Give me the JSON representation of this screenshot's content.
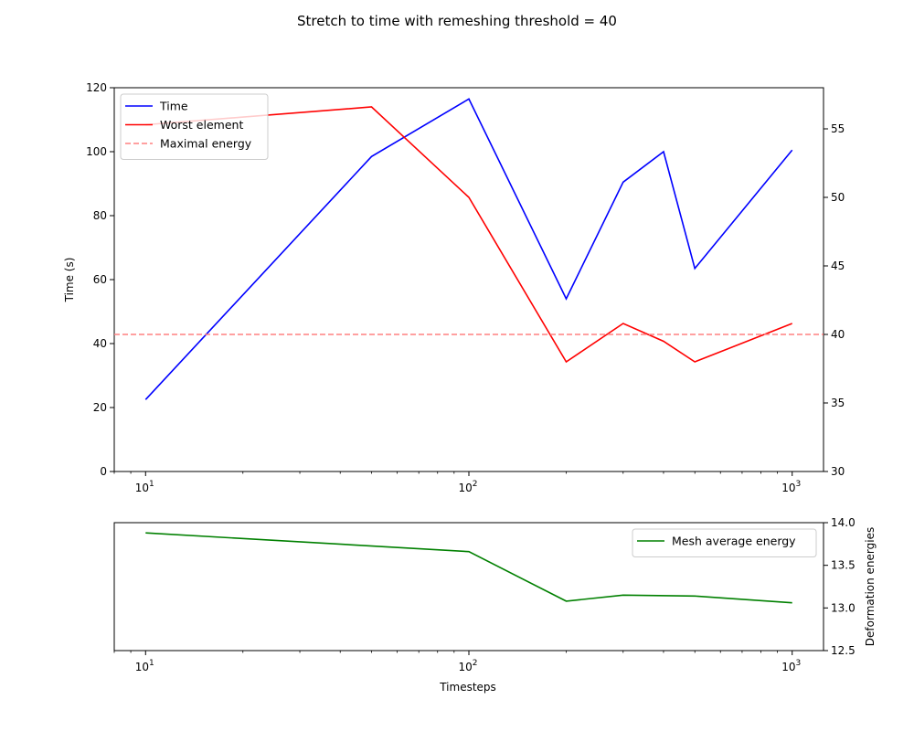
{
  "title": "Stretch to time with remeshing threshold = 40",
  "chart_data": [
    {
      "type": "line",
      "title": "Stretch to time with remeshing threshold = 40",
      "xscale": "log",
      "xlim": [
        8,
        1250
      ],
      "x_ticks": [
        10,
        100,
        1000
      ],
      "x_tick_labels": [
        "10^1",
        "10^2",
        "10^3"
      ],
      "ylabel_left": "Time (s)",
      "ylim_left": [
        0,
        120
      ],
      "y_ticks_left": [
        0,
        20,
        40,
        60,
        80,
        100,
        120
      ],
      "ylim_right": [
        30,
        58
      ],
      "y_ticks_right": [
        30,
        35,
        40,
        45,
        50,
        55
      ],
      "grid": false,
      "legend_position": "top-left",
      "series": [
        {
          "name": "Time",
          "axis": "left",
          "color": "#0000ff",
          "style": "solid",
          "x": [
            10,
            50,
            100,
            200,
            300,
            400,
            500,
            1000
          ],
          "y": [
            22.5,
            98.5,
            116.5,
            54,
            90.5,
            100,
            63.5,
            100.5
          ]
        },
        {
          "name": "Worst element",
          "axis": "right",
          "color": "#ff0000",
          "style": "solid",
          "x": [
            10,
            50,
            100,
            200,
            300,
            400,
            500,
            1000
          ],
          "y": [
            55.3,
            56.6,
            50.0,
            38.0,
            40.8,
            39.5,
            38.0,
            40.8
          ]
        },
        {
          "name": "Maximal energy",
          "axis": "right",
          "color": "#ff8080",
          "style": "dashed",
          "x": [
            8,
            1250
          ],
          "y": [
            40,
            40
          ]
        }
      ]
    },
    {
      "type": "line",
      "xlabel": "Timesteps",
      "xscale": "log",
      "xlim": [
        8,
        1250
      ],
      "x_ticks": [
        10,
        100,
        1000
      ],
      "x_tick_labels": [
        "10^1",
        "10^2",
        "10^3"
      ],
      "ylabel_right": "Deformation energies",
      "ylim_right": [
        12.5,
        14.0
      ],
      "y_ticks_right": [
        12.5,
        13.0,
        13.5,
        14.0
      ],
      "y_tick_labels_right": [
        "12.5",
        "13.0",
        "13.5",
        "14.0"
      ],
      "grid": false,
      "legend_position": "top-right",
      "series": [
        {
          "name": "Mesh average energy",
          "axis": "right",
          "color": "#008000",
          "style": "solid",
          "x": [
            10,
            100,
            200,
            300,
            500,
            1000
          ],
          "y": [
            13.88,
            13.66,
            13.08,
            13.15,
            13.14,
            13.06
          ]
        }
      ]
    }
  ]
}
